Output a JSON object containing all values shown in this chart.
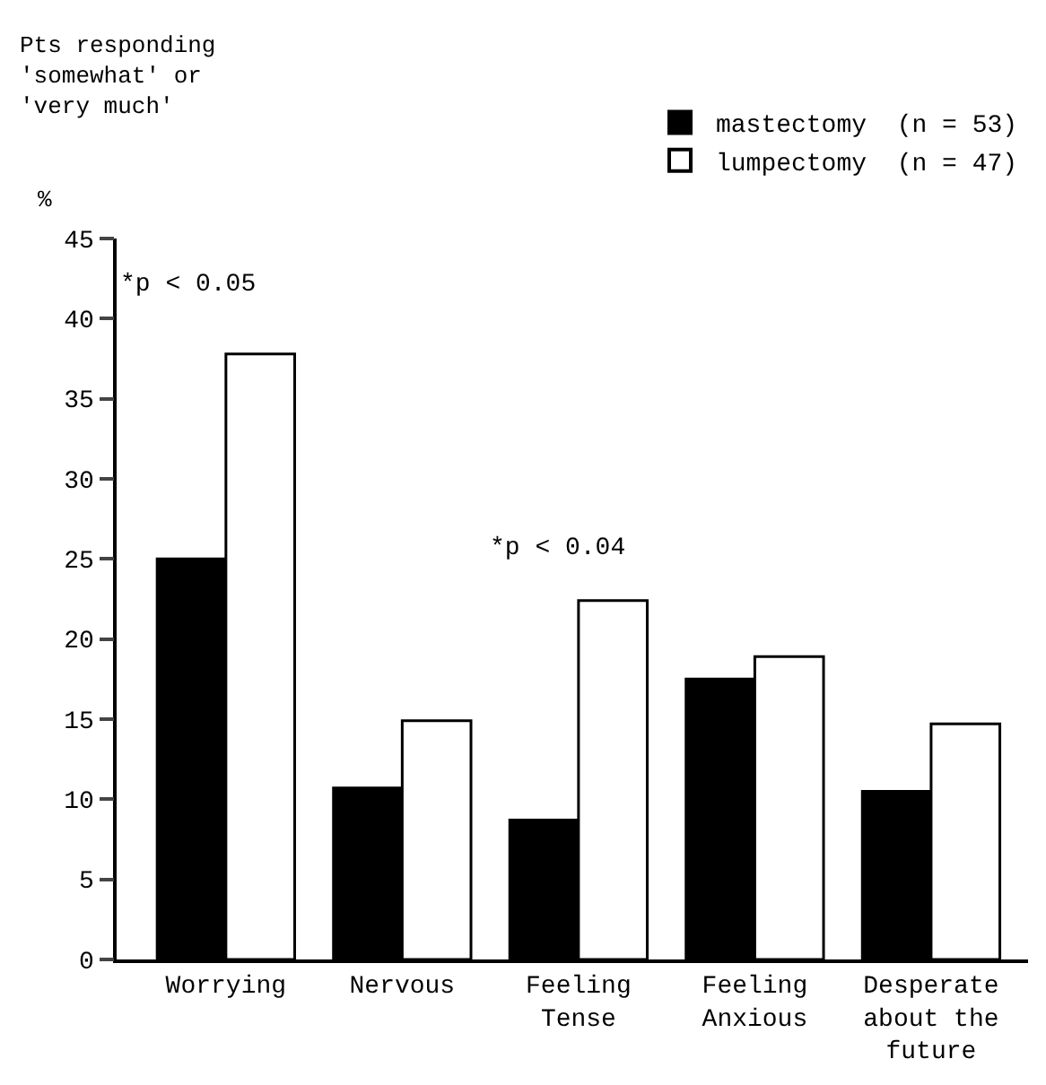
{
  "chart_data": {
    "type": "bar",
    "title": "Pts responding\n'somewhat' or\n'very much'",
    "ylabel": "%",
    "categories": [
      "Worrying",
      "Nervous",
      "Feeling\nTense",
      "Feeling\nAnxious",
      "Desperate\nabout the\nfuture"
    ],
    "series": [
      {
        "name": "mastectomy  (n = 53)",
        "color": "#000000",
        "values": [
          25.0,
          10.7,
          8.7,
          17.5,
          10.5
        ]
      },
      {
        "name": "lumpectomy  (n = 47)",
        "color": "#ffffff",
        "values": [
          37.8,
          14.9,
          22.4,
          18.9,
          14.7
        ]
      }
    ],
    "ylim": [
      0,
      45
    ],
    "yticks": [
      0,
      5,
      10,
      15,
      20,
      25,
      30,
      35,
      40,
      45
    ],
    "legend": "top right",
    "annotations": [
      "*p < 0.05",
      "*p < 0.04"
    ]
  }
}
